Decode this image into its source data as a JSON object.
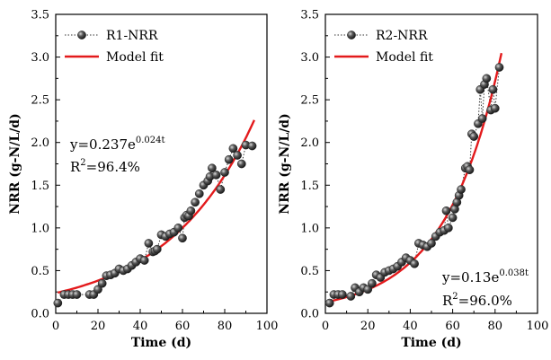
{
  "chart_data": [
    {
      "type": "scatter",
      "xlabel": "Time (d)",
      "ylabel": "NRR (g-N/L/d)",
      "xlim": [
        0,
        100
      ],
      "ylim": [
        0,
        3.5
      ],
      "xticks": [
        0,
        20,
        40,
        60,
        80,
        100
      ],
      "yticks": [
        0.0,
        0.5,
        1.0,
        1.5,
        2.0,
        2.5,
        3.0,
        3.5
      ],
      "ytick_labels": [
        "0.0",
        "0.5",
        "1.0",
        "1.5",
        "2.0",
        "2.5",
        "3.0",
        "3.5"
      ],
      "xtick_labels": [
        "0",
        "20",
        "40",
        "60",
        "80",
        "100"
      ],
      "legend_position": "top-left",
      "series": [
        {
          "name": "R1-NRR",
          "kind": "points-dotted",
          "color": "#555555",
          "x": [
            1,
            4,
            6,
            8,
            10,
            16,
            18,
            20,
            22,
            24,
            26,
            28,
            30,
            32,
            34,
            36,
            38,
            40,
            42,
            44,
            46,
            47,
            48,
            50,
            52,
            54,
            56,
            58,
            60,
            61,
            62,
            63,
            64,
            66,
            68,
            70,
            72,
            73,
            74,
            76,
            78,
            80,
            82,
            84,
            86,
            88,
            90,
            93
          ],
          "y": [
            0.12,
            0.22,
            0.22,
            0.22,
            0.22,
            0.22,
            0.22,
            0.28,
            0.35,
            0.44,
            0.45,
            0.47,
            0.52,
            0.5,
            0.52,
            0.56,
            0.6,
            0.64,
            0.62,
            0.82,
            0.72,
            0.73,
            0.75,
            0.92,
            0.9,
            0.93,
            0.95,
            1.0,
            0.88,
            1.12,
            1.15,
            1.14,
            1.2,
            1.3,
            1.4,
            1.5,
            1.55,
            1.6,
            1.7,
            1.62,
            1.45,
            1.65,
            1.8,
            1.93,
            1.85,
            1.75,
            1.97,
            1.96
          ]
        },
        {
          "name": "Model fit",
          "kind": "line",
          "color": "#e31a1c",
          "model": {
            "a": 0.237,
            "b": 0.024,
            "x_range": [
              1,
              94
            ]
          }
        }
      ],
      "annotation_equation": {
        "prefix": "y=0.237e",
        "exponent": "0.024t"
      },
      "annotation_r2": {
        "prefix": "R",
        "sup": "2",
        "suffix": "=96.4%"
      }
    },
    {
      "type": "scatter",
      "xlabel": "Time (d)",
      "ylabel": "NRR (g-N/L/d)",
      "xlim": [
        0,
        100
      ],
      "ylim": [
        0,
        3.5
      ],
      "xticks": [
        0,
        20,
        40,
        60,
        80,
        100
      ],
      "yticks": [
        0.0,
        0.5,
        1.0,
        1.5,
        2.0,
        2.5,
        3.0,
        3.5
      ],
      "ytick_labels": [
        "0.0",
        "0.5",
        "1.0",
        "1.5",
        "2.0",
        "2.5",
        "3.0",
        "3.5"
      ],
      "xtick_labels": [
        "0",
        "20",
        "40",
        "60",
        "80",
        "100"
      ],
      "legend_position": "top-left",
      "series": [
        {
          "name": "R2-NRR",
          "kind": "points-dotted",
          "color": "#555555",
          "x": [
            2,
            4,
            6,
            8,
            12,
            14,
            16,
            18,
            20,
            22,
            24,
            26,
            28,
            30,
            32,
            34,
            36,
            38,
            40,
            42,
            44,
            46,
            48,
            50,
            52,
            54,
            56,
            57,
            58,
            60,
            61,
            62,
            63,
            64,
            66,
            67,
            68,
            69,
            70,
            72,
            73,
            74,
            75,
            76,
            78,
            79,
            80,
            82
          ],
          "y": [
            0.12,
            0.22,
            0.22,
            0.22,
            0.2,
            0.3,
            0.25,
            0.3,
            0.28,
            0.35,
            0.45,
            0.42,
            0.48,
            0.5,
            0.52,
            0.55,
            0.6,
            0.65,
            0.62,
            0.58,
            0.82,
            0.8,
            0.78,
            0.82,
            0.9,
            0.95,
            0.97,
            1.2,
            1.0,
            1.12,
            1.22,
            1.3,
            1.38,
            1.45,
            1.7,
            1.72,
            1.68,
            2.1,
            2.07,
            2.22,
            2.62,
            2.28,
            2.68,
            2.75,
            2.38,
            2.62,
            2.4,
            2.88
          ]
        },
        {
          "name": "Model fit",
          "kind": "line",
          "color": "#e31a1c",
          "model": {
            "a": 0.13,
            "b": 0.038,
            "x_range": [
              1,
              83
            ]
          }
        }
      ],
      "annotation_equation": {
        "prefix": "y=0.13e",
        "exponent": "0.038t"
      },
      "annotation_r2": {
        "prefix": "R",
        "sup": "2",
        "suffix": "=96.0%"
      }
    }
  ]
}
